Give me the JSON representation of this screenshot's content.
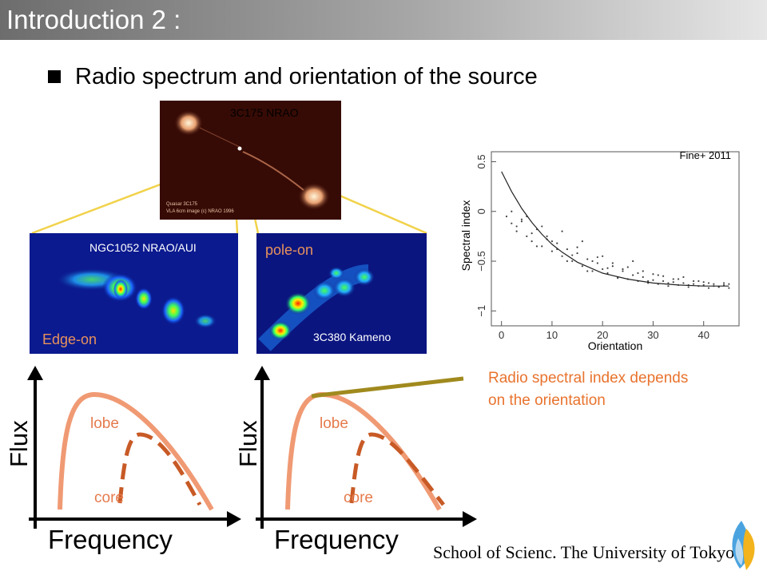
{
  "slide": {
    "title": "Introduction 2 :",
    "bullet": "Radio spectrum and orientation of the source",
    "footer": "School of Scienc. The University of Tokyo"
  },
  "images": {
    "top": {
      "caption": "3C175 NRAO",
      "credit_line1": "Quasar 3C175",
      "credit_line2": "VLA 6cm image (c) NRAO 1996"
    },
    "left": {
      "caption": "NGC1052 NRAO/AUI",
      "overlay": "Edge-on"
    },
    "right": {
      "caption": "3C380 Kameno",
      "overlay": "pole-on"
    }
  },
  "sketches": {
    "left": {
      "y_axis": "Flux",
      "x_axis": "Frequency",
      "lobe": "lobe",
      "core": "core"
    },
    "right": {
      "y_axis": "Flux",
      "x_axis": "Frequency",
      "lobe": "lobe",
      "core": "core"
    }
  },
  "plot": {
    "citation": "Fine+ 2011",
    "note_line1": "Radio spectral index depends",
    "note_line2": "on the orientation"
  },
  "chart_data": {
    "type": "scatter",
    "title": "",
    "xlabel": "Orientation",
    "ylabel": "Spectral index",
    "xlim": [
      -2,
      47
    ],
    "ylim": [
      -1.15,
      0.6
    ],
    "xticks": [
      "0",
      "10",
      "20",
      "30",
      "40"
    ],
    "yticks": [
      "0.5",
      "0",
      "−0.5",
      "−1"
    ],
    "fit_curve": {
      "x": [
        0,
        2,
        4,
        6,
        8,
        10,
        12,
        15,
        20,
        25,
        30,
        35,
        40,
        45
      ],
      "y": [
        0.4,
        0.2,
        0.03,
        -0.11,
        -0.23,
        -0.33,
        -0.41,
        -0.51,
        -0.62,
        -0.68,
        -0.72,
        -0.74,
        -0.75,
        -0.75
      ]
    },
    "scatter_points": {
      "x": [
        1,
        2,
        3,
        4,
        5,
        6,
        7,
        8,
        9,
        10,
        11,
        12,
        13,
        14,
        15,
        16,
        17,
        18,
        19,
        20,
        21,
        22,
        23,
        24,
        25,
        26,
        27,
        28,
        29,
        30,
        31,
        32,
        33,
        34,
        35,
        36,
        37,
        38,
        39,
        40,
        41,
        42,
        43,
        44,
        45,
        2,
        4,
        6,
        8,
        10,
        12,
        14,
        16,
        18,
        20,
        22,
        24,
        26,
        28,
        30,
        32,
        34,
        36,
        38,
        40,
        42,
        44,
        3,
        5,
        7,
        9,
        11,
        13,
        15,
        17,
        19,
        21,
        23,
        25,
        27,
        29,
        31,
        33,
        35,
        37,
        39,
        41,
        43,
        45
      ],
      "y": [
        -0.05,
        -0.12,
        -0.2,
        -0.1,
        -0.25,
        -0.3,
        -0.18,
        -0.35,
        -0.28,
        -0.4,
        -0.32,
        -0.45,
        -0.38,
        -0.5,
        -0.42,
        -0.55,
        -0.48,
        -0.6,
        -0.52,
        -0.58,
        -0.62,
        -0.55,
        -0.66,
        -0.6,
        -0.68,
        -0.64,
        -0.7,
        -0.66,
        -0.72,
        -0.69,
        -0.73,
        -0.7,
        -0.75,
        -0.71,
        -0.74,
        -0.72,
        -0.76,
        -0.73,
        -0.75,
        -0.74,
        -0.77,
        -0.75,
        -0.76,
        -0.74,
        -0.77,
        0.0,
        -0.08,
        -0.22,
        -0.15,
        -0.3,
        -0.2,
        -0.44,
        -0.3,
        -0.5,
        -0.45,
        -0.52,
        -0.58,
        -0.5,
        -0.6,
        -0.63,
        -0.65,
        -0.68,
        -0.66,
        -0.7,
        -0.71,
        -0.73,
        -0.72,
        -0.15,
        -0.05,
        -0.35,
        -0.25,
        -0.38,
        -0.5,
        -0.36,
        -0.6,
        -0.46,
        -0.57,
        -0.67,
        -0.56,
        -0.62,
        -0.7,
        -0.64,
        -0.72,
        -0.68,
        -0.74,
        -0.7,
        -0.72,
        -0.76,
        -0.73
      ]
    },
    "grid": false,
    "legend": "none"
  }
}
